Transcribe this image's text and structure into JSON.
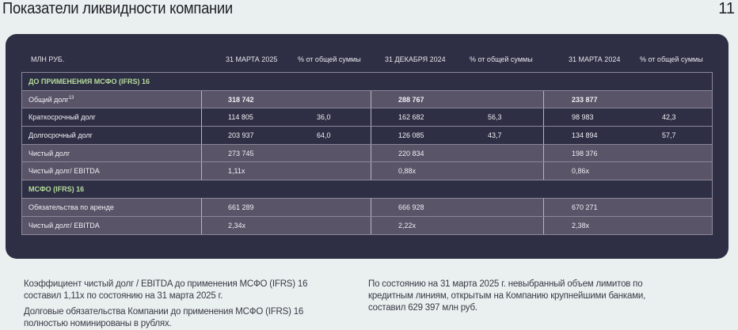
{
  "header": {
    "title": "Показатели ликвидности компании",
    "page_number": "11"
  },
  "table": {
    "columns": [
      "МЛН РУБ.",
      "31 МАРТА 2025",
      "% от общей суммы",
      "31 ДЕКАБРЯ 2024",
      "% от общей суммы",
      "31 МАРТА 2024",
      "% от общей суммы"
    ],
    "section1": "ДО ПРИМЕНЕНИЯ МСФО (IFRS) 16",
    "section2": "МСФО (IFRS) 16",
    "rows": [
      {
        "label": "Общий долг",
        "sup": "13",
        "v": [
          "318 742",
          "",
          "288 767",
          "",
          "233 877",
          ""
        ]
      },
      {
        "label": "Краткосрочный долг",
        "v": [
          "114 805",
          "36,0",
          "162 682",
          "56,3",
          "98 983",
          "42,3"
        ]
      },
      {
        "label": "Долгосрочный долг",
        "v": [
          "203 937",
          "64,0",
          "126 085",
          "43,7",
          "134 894",
          "57,7"
        ]
      },
      {
        "label": "Чистый долг",
        "v": [
          "273 745",
          "",
          "220 834",
          "",
          "198 376",
          ""
        ]
      },
      {
        "label": "Чистый долг/ EBITDA",
        "v": [
          "1,11x",
          "",
          "0,88x",
          "",
          "0,86x",
          ""
        ]
      },
      {
        "label": "Обязательства по аренде",
        "v": [
          "661 289",
          "",
          "666 928",
          "",
          "670 271",
          ""
        ]
      },
      {
        "label": "Чистый долг/ EBITDA",
        "v": [
          "2,34x",
          "",
          "2,22x",
          "",
          "2,38x",
          ""
        ]
      }
    ]
  },
  "notes": {
    "left1": "Коэффициент чистый долг / EBITDA до применения МСФО (IFRS) 16 составил 1,11x по состоянию на 31 марта 2025 г.",
    "left2": "Долговые обязательства Компании до применения МСФО (IFRS) 16 полностью номинированы в рублях.",
    "right": "По состоянию на 31 марта 2025 г. невыбранный объем лимитов по кредитным линиям, открытым на Компанию крупнейшими банками, составил 629 397 млн руб."
  },
  "colors": {
    "card": "#2e2f44",
    "row_light": "#5a5468",
    "section_text": "#b7dc9c"
  }
}
